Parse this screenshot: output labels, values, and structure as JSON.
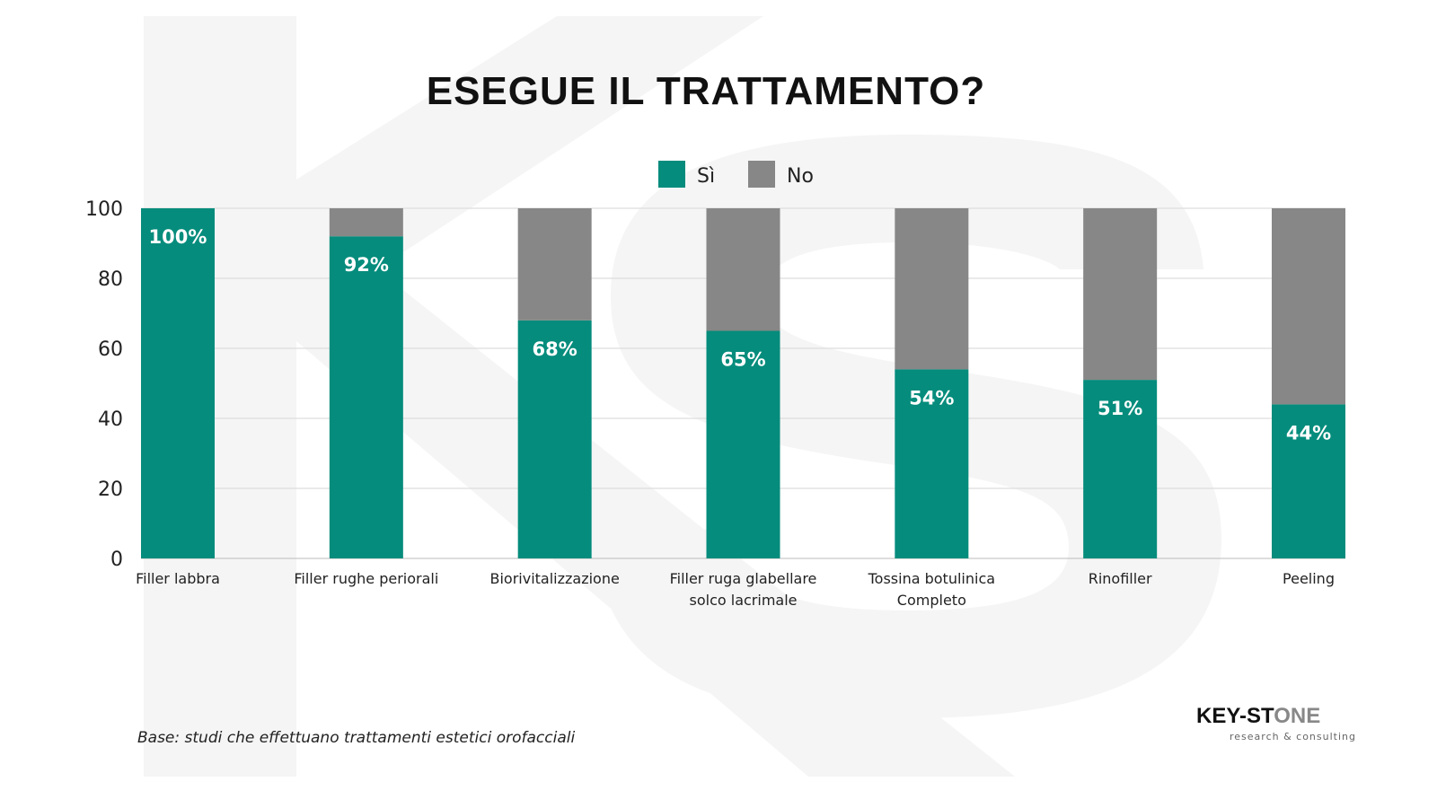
{
  "chart_data": {
    "type": "bar",
    "stacked": true,
    "title": "ESEGUE IL TRATTAMENTO?",
    "categories": [
      [
        "Filler labbra"
      ],
      [
        "Filler rughe periorali"
      ],
      [
        "Biorivitalizzazione"
      ],
      [
        "Filler ruga glabellare",
        "solco lacrimale"
      ],
      [
        "Tossina botulinica",
        "Completo"
      ],
      [
        "Rinofiller"
      ],
      [
        "Peeling"
      ]
    ],
    "series": [
      {
        "name": "Sì",
        "color": "#058c7c",
        "values": [
          100,
          92,
          68,
          65,
          54,
          51,
          44
        ]
      },
      {
        "name": "No",
        "color": "#878787",
        "values": [
          0,
          8,
          32,
          35,
          46,
          49,
          56
        ]
      }
    ],
    "data_labels": [
      "100%",
      "92%",
      "68%",
      "65%",
      "54%",
      "51%",
      "44%"
    ],
    "ylim": [
      0,
      100
    ],
    "yticks": [
      0,
      20,
      40,
      60,
      80,
      100
    ],
    "grid": true,
    "legend": "top-center",
    "xlabel": "",
    "ylabel": ""
  },
  "footnote": "Base: studi che effettuano trattamenti estetici orofacciali",
  "logo": {
    "name_dark": "KEY-ST",
    "name_light": "ONE",
    "tagline": "research & consulting"
  }
}
